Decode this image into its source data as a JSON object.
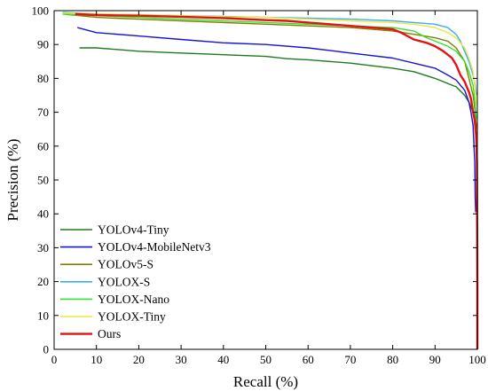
{
  "chart_data": {
    "type": "line",
    "title": "",
    "xlabel": "Recall (%)",
    "ylabel": "Precision (%)",
    "xlim": [
      0,
      100
    ],
    "ylim": [
      0,
      100
    ],
    "xticks": [
      "0",
      "10",
      "20",
      "30",
      "40",
      "50",
      "60",
      "70",
      "80",
      "90",
      "100"
    ],
    "yticks": [
      "0",
      "10",
      "20",
      "30",
      "40",
      "50",
      "60",
      "70",
      "80",
      "90",
      "100"
    ],
    "grid": false,
    "legend_position": "bottom-left",
    "series": [
      {
        "name": "YOLOv4-Tiny",
        "color": "#1e7a1e",
        "x": [
          6,
          10,
          20,
          30,
          40,
          50,
          55,
          60,
          70,
          80,
          85,
          90,
          95,
          97,
          98,
          99,
          99.5,
          99.8
        ],
        "y": [
          89,
          89,
          88,
          87.5,
          87,
          86.5,
          85.8,
          85.5,
          84.5,
          83,
          82,
          80,
          77.5,
          75,
          73,
          70,
          68,
          66
        ]
      },
      {
        "name": "YOLOv4-MobileNetv3",
        "color": "#1515d6",
        "x": [
          5.5,
          10,
          20,
          30,
          40,
          50,
          60,
          70,
          80,
          85,
          90,
          93,
          95,
          97,
          98,
          98.5,
          99,
          99.2,
          99.4,
          99.5,
          99.6
        ],
        "y": [
          95,
          93.5,
          92.5,
          91.5,
          90.5,
          90,
          89,
          87.5,
          86,
          84.5,
          83,
          81,
          79.5,
          76.5,
          73,
          70,
          66,
          60,
          55,
          45,
          40.5
        ]
      },
      {
        "name": "YOLOv5-S",
        "color": "#808000",
        "x": [
          2,
          10,
          20,
          30,
          40,
          50,
          60,
          70,
          80,
          85,
          90,
          93,
          95,
          97,
          98,
          99,
          99.5,
          99.8
        ],
        "y": [
          99,
          98,
          97.5,
          97,
          96.5,
          96,
          95.5,
          95,
          94,
          93,
          92,
          91,
          89,
          85,
          80,
          75,
          70,
          65
        ]
      },
      {
        "name": "YOLOX-S",
        "color": "#3aaeee",
        "x": [
          2,
          10,
          20,
          30,
          40,
          50,
          60,
          70,
          80,
          85,
          90,
          93,
          95,
          96,
          97,
          98,
          99,
          99.5,
          99.8
        ],
        "y": [
          99.5,
          99,
          98.8,
          98.5,
          98.3,
          98,
          97.8,
          97.5,
          97,
          96.5,
          96,
          95,
          93,
          91,
          88,
          85,
          81,
          78,
          75
        ]
      },
      {
        "name": "YOLOX-Nano",
        "color": "#34e034",
        "x": [
          2,
          10,
          20,
          30,
          40,
          50,
          60,
          70,
          80,
          85,
          88,
          90,
          93,
          95,
          97,
          98,
          99,
          99.5,
          99.8
        ],
        "y": [
          99,
          98.5,
          98,
          97.5,
          97,
          96.5,
          96,
          95.5,
          95,
          94,
          92,
          91,
          89.5,
          88,
          85,
          82,
          78,
          72,
          68
        ]
      },
      {
        "name": "YOLOX-Tiny",
        "color": "#ece83c",
        "x": [
          2,
          10,
          20,
          30,
          40,
          50,
          60,
          70,
          80,
          85,
          90,
          93,
          95,
          97,
          98,
          99,
          99.5,
          99.8
        ],
        "y": [
          99.3,
          99,
          98.8,
          98.5,
          98.2,
          98,
          97.5,
          97,
          96.5,
          96,
          95,
          93.5,
          92,
          89,
          86,
          82,
          77,
          72
        ]
      },
      {
        "name": "Ours",
        "color": "#e01414",
        "x": [
          5,
          10,
          20,
          30,
          40,
          50,
          55,
          60,
          65,
          70,
          75,
          80,
          82,
          85,
          88,
          90,
          92,
          94,
          95,
          96,
          97,
          98,
          98.5,
          99,
          99.3,
          99.5,
          99.7,
          99.8,
          99.9,
          100,
          100
        ],
        "y": [
          99,
          98.7,
          98.5,
          98.2,
          97.8,
          97.2,
          97,
          96.5,
          96,
          95.5,
          95,
          94.5,
          93.5,
          91.5,
          90.5,
          89.5,
          88,
          86,
          84,
          81,
          79,
          76,
          74,
          70,
          68,
          66,
          63,
          60,
          55,
          20,
          0
        ]
      }
    ]
  }
}
